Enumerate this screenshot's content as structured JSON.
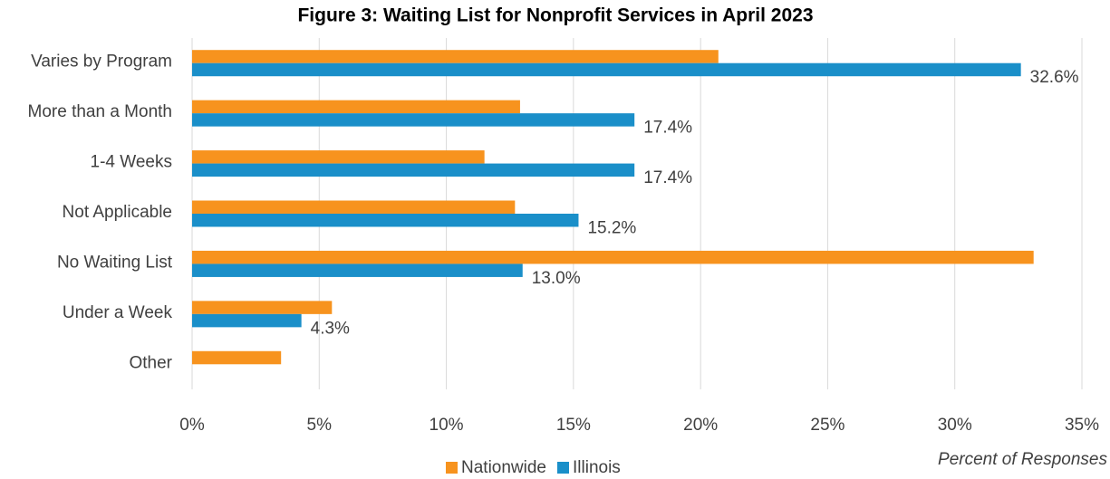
{
  "chart_data": {
    "type": "bar",
    "orientation": "horizontal",
    "title": "Figure 3: Waiting List for Nonprofit Services in April 2023",
    "x_label": "Percent of Responses",
    "categories": [
      "Varies by Program",
      "More than a Month",
      "1-4 Weeks",
      "Not Applicable",
      "No Waiting List",
      "Under a Week",
      "Other"
    ],
    "series": [
      {
        "name": "Nationwide",
        "color": "#f7931e",
        "values": [
          20.7,
          12.9,
          11.5,
          12.7,
          33.1,
          5.5,
          3.5
        ]
      },
      {
        "name": "Illinois",
        "color": "#1a8fc9",
        "values": [
          32.6,
          17.4,
          17.4,
          15.2,
          13.0,
          4.3,
          null
        ],
        "value_labels": [
          "32.6%",
          "17.4%",
          "17.4%",
          "15.2%",
          "13.0%",
          "4.3%",
          null
        ]
      }
    ],
    "xlim": [
      0,
      35
    ],
    "xticks": [
      {
        "value": 0,
        "label": "0%"
      },
      {
        "value": 5,
        "label": "5%"
      },
      {
        "value": 10,
        "label": "10%"
      },
      {
        "value": 15,
        "label": "15%"
      },
      {
        "value": 20,
        "label": "20%"
      },
      {
        "value": 25,
        "label": "25%"
      },
      {
        "value": 30,
        "label": "30%"
      },
      {
        "value": 35,
        "label": "35%"
      }
    ],
    "grid": true,
    "legend": "bottom"
  }
}
